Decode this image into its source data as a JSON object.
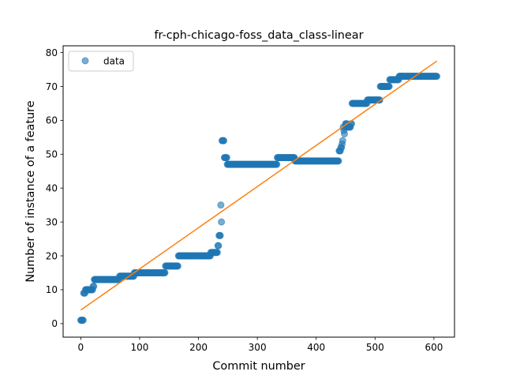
{
  "chart_data": {
    "type": "scatter",
    "title": "fr-cph-chicago-foss_data_class-linear",
    "xlabel": "Commit number",
    "ylabel": "Number of instance of a feature",
    "xlim": [
      -30,
      635
    ],
    "ylim": [
      -4,
      82
    ],
    "xticks": [
      0,
      100,
      200,
      300,
      400,
      500,
      600
    ],
    "yticks": [
      0,
      10,
      20,
      30,
      40,
      50,
      60,
      70,
      80
    ],
    "legend_position": "upper-left",
    "colors": {
      "data": "#1f77b4",
      "fit": "#ff7f0e"
    },
    "series": [
      {
        "name": "data",
        "kind": "points",
        "segments": [
          [
            0,
            4,
            1
          ],
          [
            5,
            7,
            9
          ],
          [
            8,
            20,
            10
          ],
          [
            21,
            22,
            11
          ],
          [
            23,
            65,
            13
          ],
          [
            66,
            90,
            14
          ],
          [
            91,
            143,
            15
          ],
          [
            144,
            165,
            17
          ],
          [
            166,
            220,
            20
          ],
          [
            221,
            232,
            21
          ],
          [
            233,
            234,
            23
          ],
          [
            235,
            237,
            26
          ],
          [
            238,
            238,
            35
          ],
          [
            239,
            239,
            30
          ],
          [
            240,
            243,
            54
          ],
          [
            244,
            248,
            49
          ],
          [
            249,
            333,
            47
          ],
          [
            334,
            363,
            49
          ],
          [
            364,
            438,
            48
          ],
          [
            439,
            441,
            51
          ],
          [
            442,
            443,
            52
          ],
          [
            444,
            444,
            53
          ],
          [
            445,
            445,
            54
          ],
          [
            446,
            446,
            58
          ],
          [
            447,
            447,
            57
          ],
          [
            448,
            448,
            56
          ],
          [
            449,
            449,
            58
          ],
          [
            450,
            452,
            59
          ],
          [
            453,
            458,
            58
          ],
          [
            459,
            460,
            59
          ],
          [
            461,
            486,
            65
          ],
          [
            487,
            508,
            66
          ],
          [
            509,
            524,
            70
          ],
          [
            525,
            540,
            72
          ],
          [
            541,
            605,
            73
          ]
        ]
      },
      {
        "kind": "line",
        "x": [
          0,
          605
        ],
        "y": [
          4.0,
          77.5
        ]
      }
    ],
    "legend": [
      {
        "label": "data",
        "marker": "circle"
      }
    ]
  }
}
